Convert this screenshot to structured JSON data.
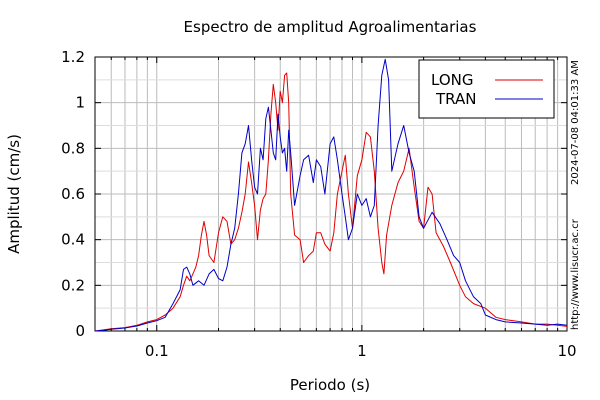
{
  "chart_data": {
    "type": "line",
    "title": "Espectro de amplitud Agroalimentarias",
    "xlabel": "Periodo (s)",
    "ylabel": "Amplitud (cm/s)",
    "xscale": "log",
    "xlim": [
      0.05,
      10
    ],
    "ylim": [
      0,
      1.2
    ],
    "x_ticks": [
      {
        "value": 0.1,
        "label": "0.1"
      },
      {
        "value": 1,
        "label": "1"
      },
      {
        "value": 10,
        "label": "10"
      }
    ],
    "y_ticks": [
      {
        "value": 0,
        "label": "0"
      },
      {
        "value": 0.2,
        "label": "0.2"
      },
      {
        "value": 0.4,
        "label": "0.4"
      },
      {
        "value": 0.6,
        "label": "0.6"
      },
      {
        "value": 0.8,
        "label": "0.8"
      },
      {
        "value": 1,
        "label": "1"
      },
      {
        "value": 1.2,
        "label": "1.2"
      }
    ],
    "grid": true,
    "legend_position": "top-right",
    "series": [
      {
        "name": "LONG",
        "color": "#e00000",
        "points": [
          [
            0.05,
            0.0
          ],
          [
            0.055,
            0.005
          ],
          [
            0.06,
            0.01
          ],
          [
            0.07,
            0.015
          ],
          [
            0.08,
            0.025
          ],
          [
            0.09,
            0.04
          ],
          [
            0.1,
            0.05
          ],
          [
            0.11,
            0.07
          ],
          [
            0.12,
            0.1
          ],
          [
            0.13,
            0.15
          ],
          [
            0.135,
            0.2
          ],
          [
            0.14,
            0.24
          ],
          [
            0.145,
            0.22
          ],
          [
            0.15,
            0.25
          ],
          [
            0.155,
            0.28
          ],
          [
            0.16,
            0.33
          ],
          [
            0.165,
            0.42
          ],
          [
            0.17,
            0.48
          ],
          [
            0.175,
            0.42
          ],
          [
            0.18,
            0.33
          ],
          [
            0.19,
            0.3
          ],
          [
            0.2,
            0.43
          ],
          [
            0.21,
            0.5
          ],
          [
            0.22,
            0.48
          ],
          [
            0.23,
            0.38
          ],
          [
            0.24,
            0.4
          ],
          [
            0.25,
            0.45
          ],
          [
            0.26,
            0.52
          ],
          [
            0.27,
            0.6
          ],
          [
            0.28,
            0.74
          ],
          [
            0.29,
            0.65
          ],
          [
            0.3,
            0.55
          ],
          [
            0.31,
            0.4
          ],
          [
            0.32,
            0.53
          ],
          [
            0.33,
            0.58
          ],
          [
            0.34,
            0.6
          ],
          [
            0.35,
            0.75
          ],
          [
            0.36,
            0.95
          ],
          [
            0.37,
            1.08
          ],
          [
            0.38,
            1.0
          ],
          [
            0.39,
            0.88
          ],
          [
            0.4,
            1.05
          ],
          [
            0.41,
            1.0
          ],
          [
            0.42,
            1.12
          ],
          [
            0.43,
            1.13
          ],
          [
            0.44,
            1.0
          ],
          [
            0.45,
            0.6
          ],
          [
            0.47,
            0.42
          ],
          [
            0.5,
            0.4
          ],
          [
            0.52,
            0.3
          ],
          [
            0.55,
            0.33
          ],
          [
            0.58,
            0.35
          ],
          [
            0.6,
            0.43
          ],
          [
            0.63,
            0.43
          ],
          [
            0.66,
            0.38
          ],
          [
            0.7,
            0.35
          ],
          [
            0.73,
            0.43
          ],
          [
            0.76,
            0.6
          ],
          [
            0.8,
            0.7
          ],
          [
            0.83,
            0.77
          ],
          [
            0.86,
            0.6
          ],
          [
            0.9,
            0.45
          ],
          [
            0.95,
            0.68
          ],
          [
            1.0,
            0.75
          ],
          [
            1.05,
            0.87
          ],
          [
            1.1,
            0.85
          ],
          [
            1.15,
            0.7
          ],
          [
            1.2,
            0.45
          ],
          [
            1.25,
            0.3
          ],
          [
            1.28,
            0.25
          ],
          [
            1.32,
            0.42
          ],
          [
            1.4,
            0.55
          ],
          [
            1.5,
            0.65
          ],
          [
            1.6,
            0.7
          ],
          [
            1.7,
            0.8
          ],
          [
            1.8,
            0.63
          ],
          [
            1.9,
            0.48
          ],
          [
            2.0,
            0.45
          ],
          [
            2.1,
            0.63
          ],
          [
            2.2,
            0.6
          ],
          [
            2.3,
            0.43
          ],
          [
            2.5,
            0.37
          ],
          [
            2.7,
            0.3
          ],
          [
            3.0,
            0.2
          ],
          [
            3.2,
            0.15
          ],
          [
            3.5,
            0.12
          ],
          [
            4.0,
            0.1
          ],
          [
            4.5,
            0.06
          ],
          [
            5.0,
            0.05
          ],
          [
            6.0,
            0.04
          ],
          [
            7.0,
            0.03
          ],
          [
            8.0,
            0.03
          ],
          [
            9.0,
            0.025
          ],
          [
            10.0,
            0.02
          ]
        ]
      },
      {
        "name": "TRAN",
        "color": "#0000c8",
        "points": [
          [
            0.05,
            0.0
          ],
          [
            0.055,
            0.003
          ],
          [
            0.06,
            0.008
          ],
          [
            0.07,
            0.013
          ],
          [
            0.08,
            0.022
          ],
          [
            0.09,
            0.035
          ],
          [
            0.1,
            0.045
          ],
          [
            0.11,
            0.06
          ],
          [
            0.12,
            0.12
          ],
          [
            0.13,
            0.18
          ],
          [
            0.135,
            0.27
          ],
          [
            0.14,
            0.28
          ],
          [
            0.145,
            0.25
          ],
          [
            0.15,
            0.2
          ],
          [
            0.16,
            0.22
          ],
          [
            0.17,
            0.2
          ],
          [
            0.18,
            0.25
          ],
          [
            0.19,
            0.27
          ],
          [
            0.2,
            0.23
          ],
          [
            0.21,
            0.22
          ],
          [
            0.22,
            0.28
          ],
          [
            0.23,
            0.38
          ],
          [
            0.24,
            0.45
          ],
          [
            0.25,
            0.6
          ],
          [
            0.26,
            0.78
          ],
          [
            0.27,
            0.82
          ],
          [
            0.28,
            0.9
          ],
          [
            0.29,
            0.75
          ],
          [
            0.3,
            0.63
          ],
          [
            0.31,
            0.6
          ],
          [
            0.32,
            0.8
          ],
          [
            0.33,
            0.75
          ],
          [
            0.34,
            0.93
          ],
          [
            0.35,
            0.98
          ],
          [
            0.36,
            0.88
          ],
          [
            0.37,
            0.78
          ],
          [
            0.38,
            0.75
          ],
          [
            0.39,
            0.95
          ],
          [
            0.4,
            0.85
          ],
          [
            0.41,
            0.78
          ],
          [
            0.42,
            0.8
          ],
          [
            0.43,
            0.7
          ],
          [
            0.44,
            0.88
          ],
          [
            0.45,
            0.78
          ],
          [
            0.47,
            0.55
          ],
          [
            0.5,
            0.68
          ],
          [
            0.52,
            0.75
          ],
          [
            0.55,
            0.77
          ],
          [
            0.58,
            0.65
          ],
          [
            0.6,
            0.75
          ],
          [
            0.63,
            0.72
          ],
          [
            0.66,
            0.6
          ],
          [
            0.7,
            0.82
          ],
          [
            0.73,
            0.85
          ],
          [
            0.76,
            0.75
          ],
          [
            0.8,
            0.6
          ],
          [
            0.83,
            0.5
          ],
          [
            0.86,
            0.4
          ],
          [
            0.9,
            0.45
          ],
          [
            0.95,
            0.6
          ],
          [
            1.0,
            0.55
          ],
          [
            1.05,
            0.58
          ],
          [
            1.1,
            0.5
          ],
          [
            1.15,
            0.55
          ],
          [
            1.2,
            0.9
          ],
          [
            1.25,
            1.12
          ],
          [
            1.3,
            1.19
          ],
          [
            1.35,
            1.1
          ],
          [
            1.4,
            0.7
          ],
          [
            1.5,
            0.82
          ],
          [
            1.6,
            0.9
          ],
          [
            1.7,
            0.78
          ],
          [
            1.8,
            0.7
          ],
          [
            1.9,
            0.5
          ],
          [
            2.0,
            0.45
          ],
          [
            2.2,
            0.52
          ],
          [
            2.4,
            0.47
          ],
          [
            2.6,
            0.4
          ],
          [
            2.8,
            0.33
          ],
          [
            3.0,
            0.3
          ],
          [
            3.2,
            0.22
          ],
          [
            3.5,
            0.15
          ],
          [
            3.8,
            0.12
          ],
          [
            4.0,
            0.07
          ],
          [
            4.5,
            0.05
          ],
          [
            5.0,
            0.04
          ],
          [
            6.0,
            0.035
          ],
          [
            7.0,
            0.03
          ],
          [
            8.0,
            0.025
          ],
          [
            9.0,
            0.03
          ],
          [
            10.0,
            0.025
          ]
        ]
      }
    ]
  },
  "side_text": {
    "timestamp": "2024-07-08 04:01:33 AM",
    "url": "http://www.lisucr.ac.cr"
  }
}
